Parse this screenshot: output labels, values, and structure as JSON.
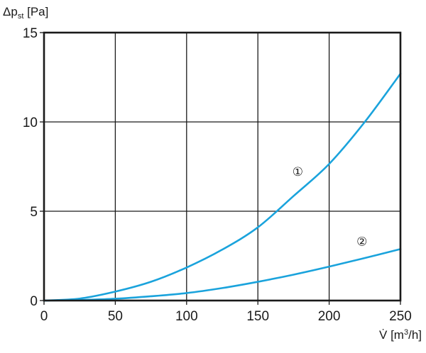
{
  "chart_data": {
    "type": "line",
    "ylabel": {
      "base": "Δp",
      "sub": "st",
      "unit": " [Pa]"
    },
    "xlabel": {
      "base": "V̇ [m",
      "sup": "3",
      "unit": "/h]"
    },
    "xlim": [
      0,
      250
    ],
    "ylim": [
      0,
      15
    ],
    "x_ticks": [
      0,
      50,
      100,
      150,
      200,
      250
    ],
    "y_ticks": [
      0,
      5,
      10,
      15
    ],
    "grid": true,
    "series": [
      {
        "name": "①",
        "color": "#1aa3dc",
        "x": [
          0,
          25,
          50,
          75,
          100,
          125,
          150,
          175,
          200,
          225,
          250
        ],
        "y": [
          0,
          0.11,
          0.5,
          1.05,
          1.85,
          2.85,
          4.1,
          5.85,
          7.65,
          10.0,
          12.7
        ]
      },
      {
        "name": "②",
        "color": "#1aa3dc",
        "x": [
          0,
          25,
          50,
          75,
          100,
          125,
          150,
          175,
          200,
          225,
          250
        ],
        "y": [
          0,
          0.03,
          0.1,
          0.24,
          0.42,
          0.7,
          1.05,
          1.45,
          1.9,
          2.38,
          2.88
        ]
      }
    ],
    "annotations": [
      {
        "text": "①",
        "x": 178,
        "y": 7.3
      },
      {
        "text": "②",
        "x": 223,
        "y": 3.4
      }
    ]
  }
}
